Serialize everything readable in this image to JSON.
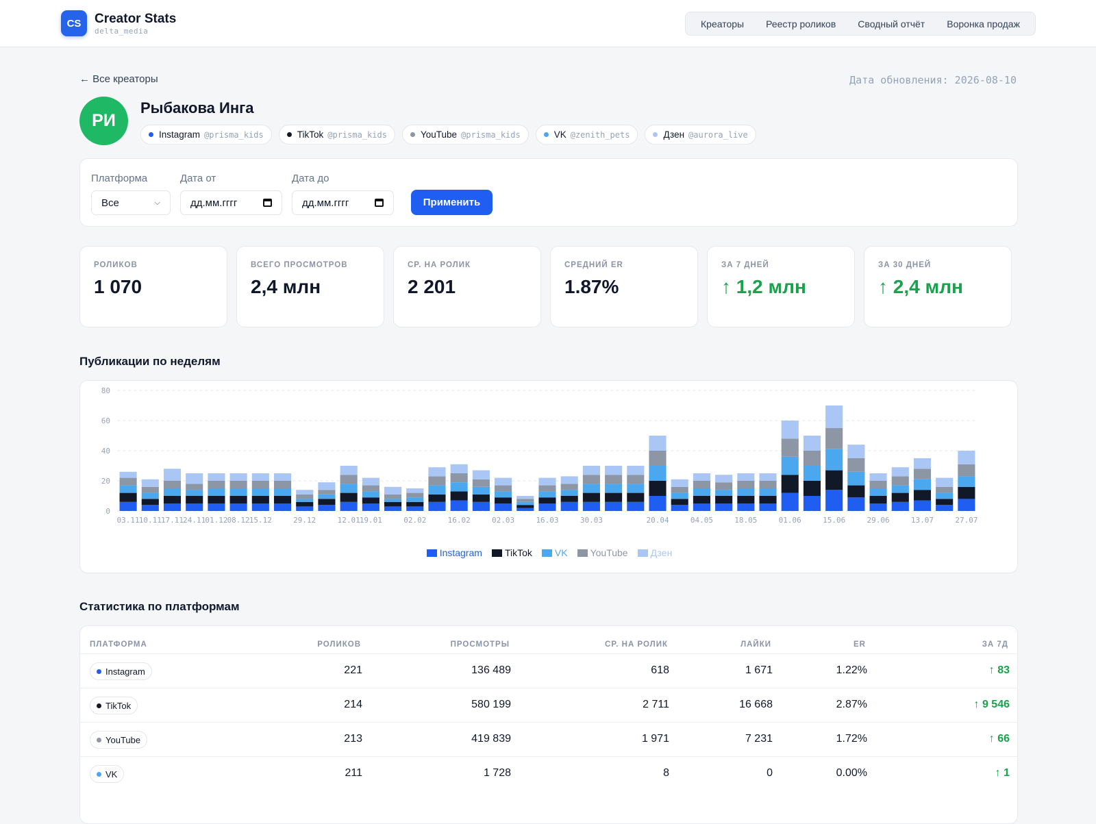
{
  "brand": {
    "logo": "CS",
    "title": "Creator Stats",
    "subtitle": "delta_media"
  },
  "nav": [
    "Креаторы",
    "Реестр роликов",
    "Сводный отчёт",
    "Воронка продаж"
  ],
  "back_link": "← Все креаторы",
  "updated": "Дата обновления: 2026-08-10",
  "creator": {
    "initials": "РИ",
    "name": "Рыбакова Инга",
    "handles": [
      {
        "platform": "Instagram",
        "nick": "@prisma_kids",
        "color": "#1f5ef0"
      },
      {
        "platform": "TikTok",
        "nick": "@prisma_kids",
        "color": "#111827"
      },
      {
        "platform": "YouTube",
        "nick": "@prisma_kids",
        "color": "#8d96a5"
      },
      {
        "platform": "VK",
        "nick": "@zenith_pets",
        "color": "#4ba8ef"
      },
      {
        "platform": "Дзен",
        "nick": "@aurora_live",
        "color": "#a9c6f5"
      }
    ]
  },
  "filters": {
    "platform_label": "Платформа",
    "platform_value": "Все",
    "date_from_label": "Дата от",
    "date_from_placeholder": "дд.мм.гггг",
    "date_to_label": "Дата до",
    "date_to_placeholder": "дд.мм.гггг",
    "apply": "Применить"
  },
  "stats": [
    {
      "label": "РОЛИКОВ",
      "value": "1 070",
      "up": false
    },
    {
      "label": "ВСЕГО ПРОСМОТРОВ",
      "value": "2,4 млн",
      "up": false
    },
    {
      "label": "СР. НА РОЛИК",
      "value": "2 201",
      "up": false
    },
    {
      "label": "СРЕДНИЙ ER",
      "value": "1.87%",
      "up": false
    },
    {
      "label": "ЗА 7 ДНЕЙ",
      "value": "↑ 1,2 млн",
      "up": true
    },
    {
      "label": "ЗА 30 ДНЕЙ",
      "value": "↑ 2,4 млн",
      "up": true
    }
  ],
  "chart_title": "Публикации по неделям",
  "chart_data": {
    "type": "bar",
    "stacked": true,
    "ylim": [
      0,
      80
    ],
    "yticks": [
      0,
      20,
      40,
      60,
      80
    ],
    "grid": true,
    "legend_position": "bottom-center",
    "categories": [
      "03.11",
      "10.11",
      "17.11",
      "24.11",
      "01.12",
      "08.12",
      "15.12",
      "22.12",
      "29.12",
      "05.01",
      "12.01",
      "19.01",
      "26.01",
      "02.02",
      "09.02",
      "16.02",
      "23.02",
      "02.03",
      "09.03",
      "16.03",
      "23.03",
      "30.03",
      "06.04",
      "13.04",
      "20.04",
      "27.04",
      "04.05",
      "11.05",
      "18.05",
      "25.05",
      "01.06",
      "08.06",
      "15.06",
      "22.06",
      "29.06",
      "06.07",
      "13.07",
      "20.07",
      "27.07"
    ],
    "shown_tick_labels": [
      "03.11",
      "10.11",
      "17.11",
      "24.11",
      "01.12",
      "08.12",
      "15.12",
      "29.12",
      "12.01",
      "19.01",
      "02.02",
      "16.02",
      "02.03",
      "16.03",
      "30.03",
      "20.04",
      "04.05",
      "18.05",
      "01.06",
      "15.06",
      "29.06",
      "13.07",
      "27.07"
    ],
    "series": [
      {
        "name": "Instagram",
        "color": "#1f5ef0",
        "values": [
          6,
          4,
          5,
          5,
          5,
          5,
          5,
          5,
          3,
          4,
          6,
          5,
          3,
          3,
          6,
          7,
          6,
          5,
          2,
          5,
          6,
          6,
          6,
          6,
          10,
          4,
          5,
          5,
          5,
          5,
          12,
          10,
          14,
          9,
          5,
          6,
          7,
          4,
          8
        ]
      },
      {
        "name": "TikTok",
        "color": "#111827",
        "values": [
          6,
          4,
          5,
          5,
          5,
          5,
          5,
          5,
          3,
          4,
          6,
          4,
          3,
          3,
          5,
          6,
          5,
          4,
          2,
          4,
          4,
          6,
          6,
          6,
          10,
          4,
          5,
          5,
          5,
          5,
          12,
          10,
          13,
          8,
          5,
          6,
          7,
          4,
          8
        ]
      },
      {
        "name": "VK",
        "color": "#4ba8ef",
        "values": [
          5,
          4,
          5,
          4,
          5,
          5,
          5,
          5,
          2,
          3,
          6,
          4,
          2,
          3,
          6,
          6,
          5,
          4,
          2,
          4,
          4,
          6,
          6,
          6,
          10,
          4,
          5,
          4,
          5,
          5,
          12,
          10,
          14,
          9,
          5,
          5,
          7,
          4,
          7
        ]
      },
      {
        "name": "YouTube",
        "color": "#8d96a5",
        "values": [
          5,
          4,
          5,
          4,
          5,
          5,
          5,
          5,
          3,
          3,
          6,
          4,
          3,
          3,
          6,
          6,
          5,
          4,
          2,
          4,
          4,
          6,
          6,
          6,
          10,
          4,
          5,
          5,
          5,
          5,
          12,
          10,
          14,
          9,
          5,
          6,
          7,
          4,
          8
        ]
      },
      {
        "name": "Дзен",
        "color": "#a9c6f5",
        "values": [
          4,
          5,
          8,
          7,
          5,
          5,
          5,
          5,
          3,
          5,
          6,
          5,
          5,
          3,
          6,
          6,
          6,
          5,
          2,
          5,
          5,
          6,
          6,
          6,
          10,
          5,
          5,
          5,
          5,
          5,
          12,
          10,
          15,
          9,
          5,
          6,
          7,
          6,
          9
        ]
      }
    ]
  },
  "table_title": "Статистика по платформам",
  "table": {
    "headers": [
      "ПЛАТФОРМА",
      "РОЛИКОВ",
      "ПРОСМОТРЫ",
      "СР. НА РОЛИК",
      "ЛАЙКИ",
      "ER",
      "ЗА 7Д"
    ],
    "rows": [
      {
        "platform": "Instagram",
        "color": "#1f5ef0",
        "videos": "221",
        "views": "136 489",
        "avg": "618",
        "likes": "1 671",
        "er": "1.22%",
        "d7": "↑ 83"
      },
      {
        "platform": "TikTok",
        "color": "#111827",
        "videos": "214",
        "views": "580 199",
        "avg": "2 711",
        "likes": "16 668",
        "er": "2.87%",
        "d7": "↑ 9 546"
      },
      {
        "platform": "YouTube",
        "color": "#8d96a5",
        "videos": "213",
        "views": "419 839",
        "avg": "1 971",
        "likes": "7 231",
        "er": "1.72%",
        "d7": "↑ 66"
      },
      {
        "platform": "VK",
        "color": "#4ba8ef",
        "videos": "211",
        "views": "1 728",
        "avg": "8",
        "likes": "0",
        "er": "0.00%",
        "d7": "↑ 1"
      }
    ]
  }
}
